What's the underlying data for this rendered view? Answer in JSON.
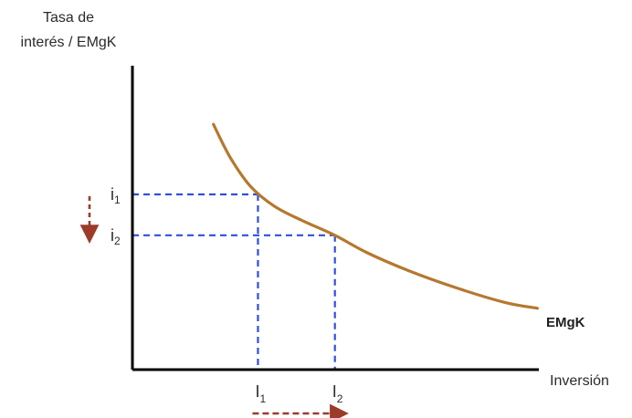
{
  "chart_data": {
    "type": "line",
    "ylabel_lines": [
      "Tasa de",
      "interés / EMgK"
    ],
    "xlabel": "Inversión",
    "series": [
      {
        "name": "EMgK",
        "points": [
          [
            0.2,
            0.84
          ],
          [
            0.24,
            0.73
          ],
          [
            0.29,
            0.63
          ],
          [
            0.35,
            0.56
          ],
          [
            0.42,
            0.51
          ],
          [
            0.5,
            0.46
          ],
          [
            0.58,
            0.4
          ],
          [
            0.68,
            0.34
          ],
          [
            0.8,
            0.28
          ],
          [
            0.92,
            0.23
          ],
          [
            1.0,
            0.21
          ]
        ]
      }
    ],
    "xlim": [
      0,
      1.06
    ],
    "ylim": [
      0,
      1.0
    ],
    "equilibria": [
      {
        "rate_symbol": "i",
        "rate_sub": "1",
        "rate": 0.6,
        "inv_symbol": "I",
        "inv_sub": "1",
        "investment": 0.31
      },
      {
        "rate_symbol": "i",
        "rate_sub": "2",
        "rate": 0.46,
        "inv_symbol": "I",
        "inv_sub": "2",
        "investment": 0.5
      }
    ],
    "colors": {
      "curve": "#b5782f",
      "guides": "#2f4fe0",
      "arrows": "#9c3b2a",
      "axis": "#000000"
    },
    "arrows": [
      {
        "axis": "y",
        "direction": "down"
      },
      {
        "axis": "x",
        "direction": "right"
      }
    ]
  }
}
